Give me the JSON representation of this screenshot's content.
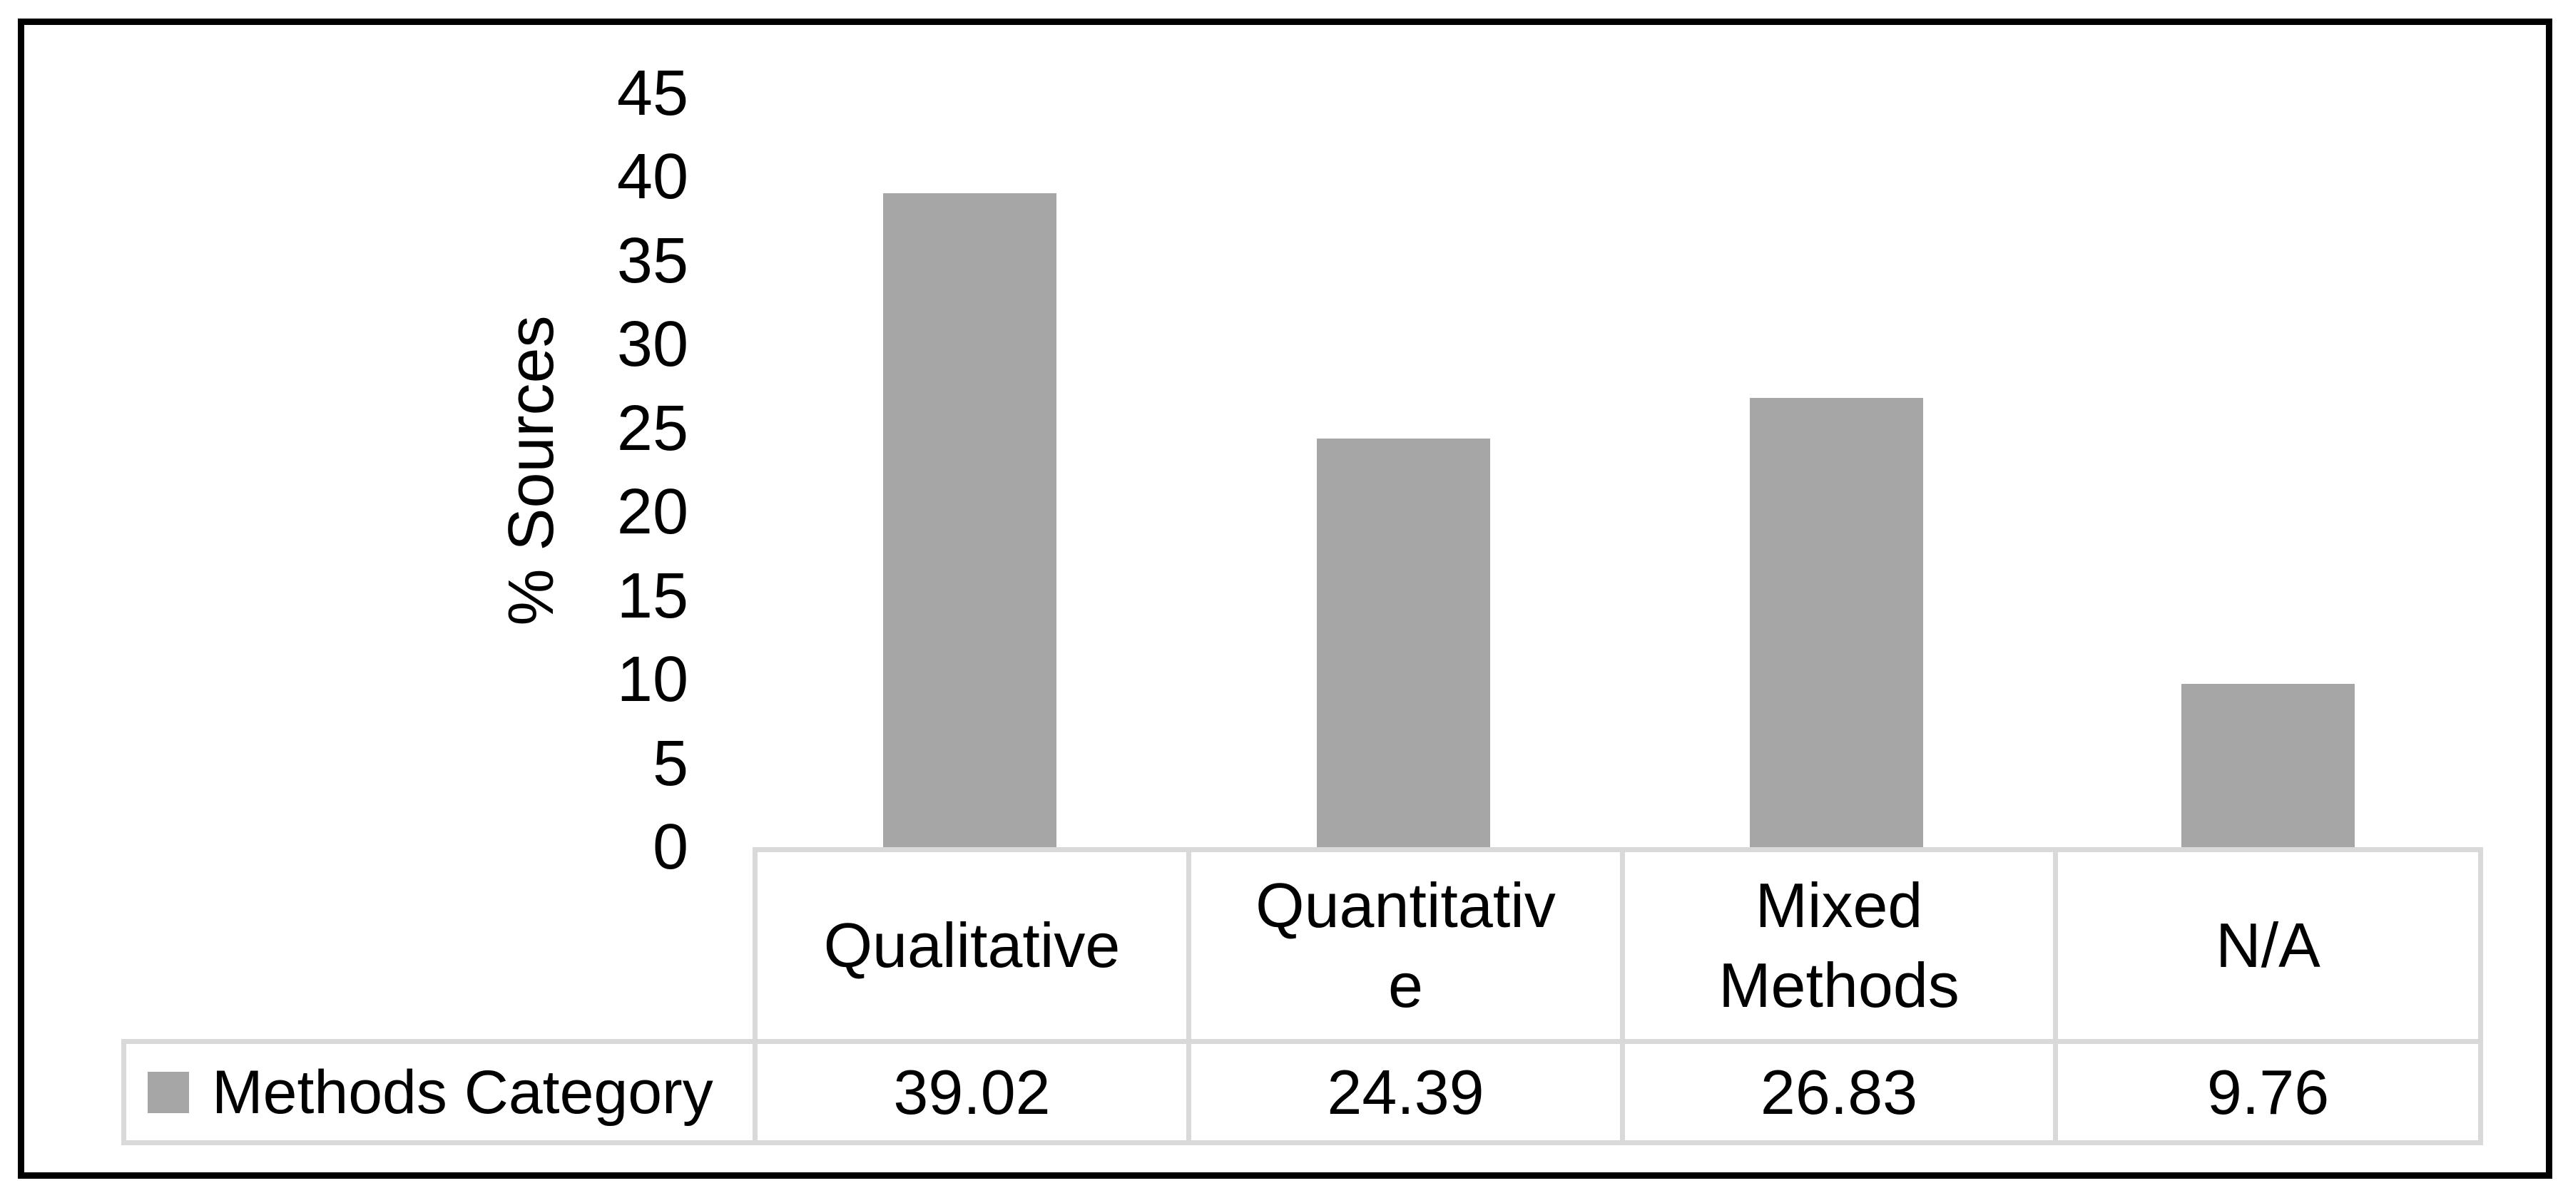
{
  "chart_data": {
    "type": "bar",
    "title": "",
    "xlabel": "",
    "ylabel": "% Sources",
    "categories": [
      "Qualitative",
      "Quantitativ\ne",
      "Mixed\nMethods",
      "N/A"
    ],
    "series": [
      {
        "name": "Methods Category",
        "values": [
          39.02,
          24.39,
          26.83,
          9.76
        ]
      }
    ],
    "value_labels": [
      "39.02",
      "24.39",
      "26.83",
      "9.76"
    ],
    "y_ticks": [
      "45",
      "40",
      "35",
      "30",
      "25",
      "20",
      "15",
      "10",
      "5",
      "0"
    ],
    "ylim": [
      0,
      45
    ],
    "grid": false,
    "legend_position": "table-row-left",
    "data_table_shown": true
  },
  "legend": {
    "label": "Methods Category"
  },
  "colors": {
    "bar": "#A6A6A6",
    "legend_marker": "#A6A6A6",
    "table_border": "#D9D9D9",
    "frame": "#000000",
    "background": "#FFFFFF",
    "text": "#000000"
  }
}
